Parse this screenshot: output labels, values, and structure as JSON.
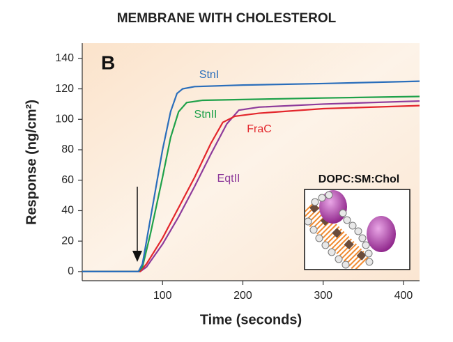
{
  "chart_data": {
    "type": "line",
    "title": "MEMBRANE WITH CHOLESTEROL",
    "panel_label": "B",
    "x_label": "Time (seconds)",
    "y_label": "Response (ng/cm²)",
    "inset_label": "DOPC:SM:Chol",
    "xlim": [
      0,
      420
    ],
    "ylim": [
      -6,
      150
    ],
    "xticks": [
      100,
      200,
      300,
      400
    ],
    "yticks": [
      0,
      20,
      40,
      60,
      80,
      100,
      120,
      140
    ],
    "series": [
      {
        "name": "StnI",
        "color": "#2a6ebb",
        "x": [
          0,
          70,
          75,
          80,
          90,
          100,
          110,
          118,
          125,
          140,
          200,
          300,
          420
        ],
        "values": [
          0,
          0,
          5,
          20,
          50,
          80,
          105,
          117,
          120,
          121.5,
          122.5,
          123.5,
          125
        ]
      },
      {
        "name": "StnII",
        "color": "#1fa14a",
        "x": [
          0,
          70,
          75,
          85,
          100,
          110,
          120,
          130,
          150,
          200,
          300,
          420
        ],
        "values": [
          0,
          0,
          3,
          25,
          62,
          88,
          105,
          111,
          112.5,
          113,
          114,
          115
        ]
      },
      {
        "name": "FraC",
        "color": "#e3262c",
        "x": [
          0,
          72,
          80,
          100,
          120,
          140,
          160,
          175,
          190,
          220,
          300,
          420
        ],
        "values": [
          0,
          0,
          5,
          22,
          42,
          62,
          84,
          98,
          102,
          104,
          107,
          109
        ]
      },
      {
        "name": "EqtII",
        "color": "#8e3b9b",
        "x": [
          0,
          72,
          80,
          100,
          120,
          140,
          160,
          180,
          195,
          220,
          300,
          420
        ],
        "values": [
          0,
          0,
          3,
          18,
          36,
          56,
          77,
          97,
          106,
          108,
          110,
          112
        ]
      }
    ]
  }
}
